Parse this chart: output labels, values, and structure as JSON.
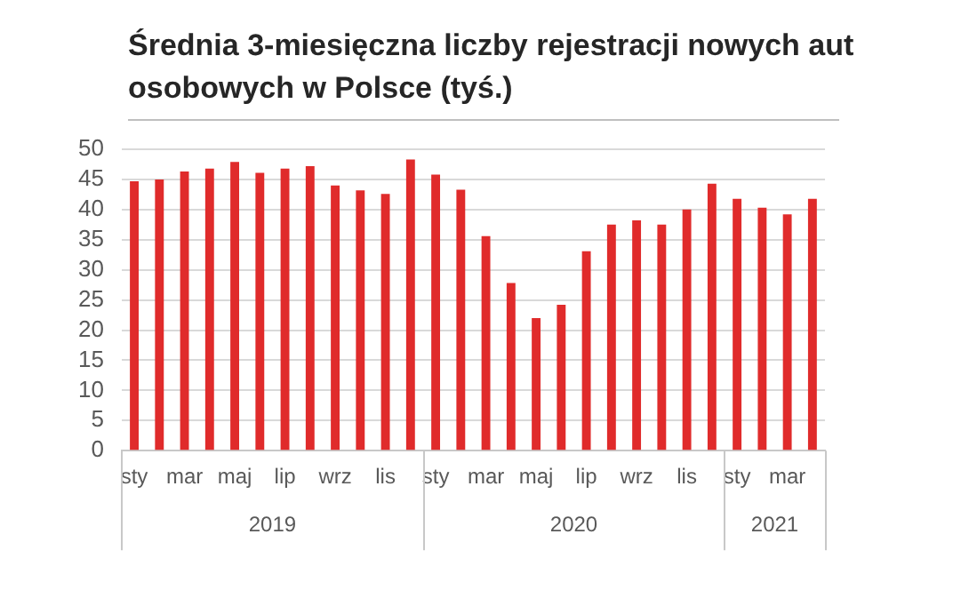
{
  "chart_data": {
    "type": "bar",
    "title": "Średnia 3-miesięczna liczby rejestracji nowych aut osobowych w Polsce (tyś.)",
    "categories": [
      "sty",
      null,
      "mar",
      null,
      "maj",
      null,
      "lip",
      null,
      "wrz",
      null,
      "lis",
      null,
      "sty",
      null,
      "mar",
      null,
      "maj",
      null,
      "lip",
      null,
      "wrz",
      null,
      "lis",
      null,
      "sty",
      null,
      "mar",
      null
    ],
    "values": [
      44.7,
      45.0,
      46.3,
      46.8,
      47.9,
      46.1,
      46.8,
      47.2,
      44.0,
      43.2,
      42.6,
      48.3,
      45.8,
      43.3,
      35.6,
      27.8,
      22.0,
      24.2,
      33.1,
      37.5,
      38.2,
      37.5,
      40.0,
      44.3,
      41.8,
      40.3,
      39.2,
      41.8
    ],
    "color": "#e02b2b",
    "ylim": [
      0,
      50
    ],
    "yticks": [
      0,
      5,
      10,
      15,
      20,
      25,
      30,
      35,
      40,
      45,
      50
    ],
    "grid": "y",
    "legend": false,
    "annotations": [
      "2019",
      "2020",
      "2021"
    ]
  }
}
